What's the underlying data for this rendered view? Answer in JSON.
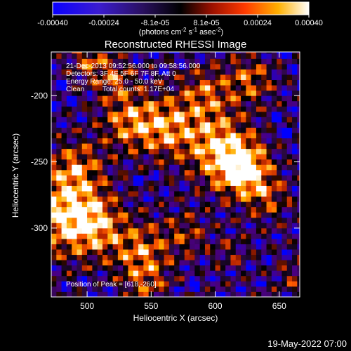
{
  "colorbar": {
    "ticks": [
      "-0.00040",
      "-0.00024",
      "-8.1e-05",
      "8.1e-05",
      "0.00024",
      "0.00040"
    ],
    "units_main": "(photons cm",
    "units_sup1": "-2",
    "units_mid": " s",
    "units_sup2": "-1",
    "units_end": " asec",
    "units_sup3": "-2",
    "units_close": ")",
    "range": [
      -0.0004,
      0.0004
    ]
  },
  "title": "Reconstructed RHESSI Image",
  "info": {
    "time": "21-Dec-2013 09:52:56.000 to 09:58:56.000",
    "detectors": "Detectors: 3F 4F 5F 6F 7F 8F, Att 0",
    "energy": "Energy Range: 25.0 - 50.0 keV",
    "method": "Clean",
    "counts": "Total counts: 1.17E+04"
  },
  "peak": "Position of Peak = [618,-260]",
  "footer_date": "19-May-2022 07:00",
  "chart_data": {
    "type": "heatmap",
    "title": "Reconstructed RHESSI Image",
    "xlabel": "Heliocentric X (arcsec)",
    "ylabel": "Heliocentric Y (arcsec)",
    "xlim": [
      472,
      666
    ],
    "ylim": [
      -352,
      -167
    ],
    "xticks": [
      500,
      550,
      600,
      650
    ],
    "yticks": [
      -200,
      -250,
      -300
    ],
    "xtick_labels": [
      "500",
      "550",
      "600",
      "650"
    ],
    "ytick_labels": [
      "-200",
      "-250",
      "-300"
    ],
    "peak": [
      618,
      -260
    ],
    "colormap": [
      "#0000ff",
      "#4b0082",
      "#2a0a40",
      "#000000",
      "#b02000",
      "#ff5a00",
      "#ffb000",
      "#ffffff"
    ],
    "value_range": [
      -0.0004,
      0.0004
    ]
  }
}
